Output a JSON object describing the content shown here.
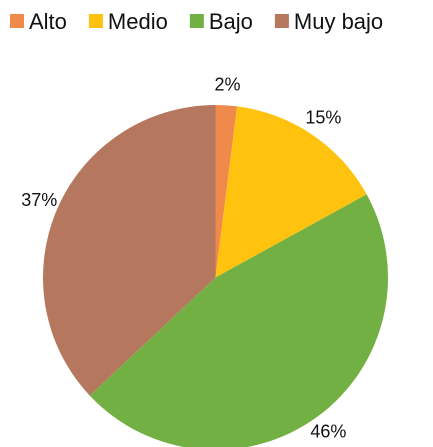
{
  "chart_data": {
    "type": "pie",
    "categories": [
      "Alto",
      "Medio",
      "Bajo",
      "Muy bajo"
    ],
    "values": [
      2,
      15,
      46,
      37
    ],
    "value_labels": [
      "2%",
      "15%",
      "46%",
      "37%"
    ],
    "colors": [
      "#f08a4b",
      "#ffc20e",
      "#72b043",
      "#b5785e"
    ],
    "legend": "top"
  }
}
